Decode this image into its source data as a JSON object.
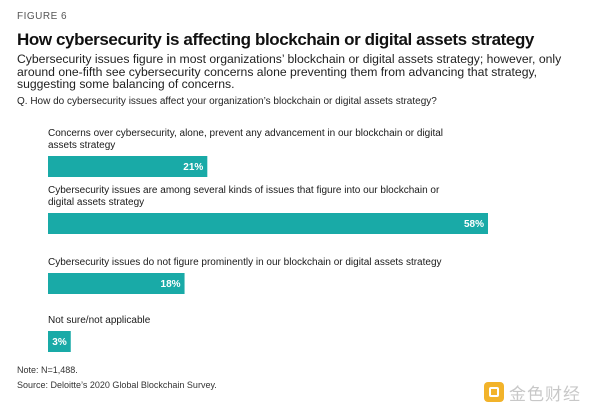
{
  "figure_label": "FIGURE 6",
  "title": "How cybersecurity is affecting blockchain or digital assets strategy",
  "subtitle": "Cybersecurity issues figure in most organizations’ blockchain or digital assets strategy; however, only around one-fifth see cybersecurity concerns alone preventing them from advancing that strategy, suggesting some balancing of concerns.",
  "question": "Q. How do cybersecurity issues affect your organization’s blockchain or digital assets strategy?",
  "note": "Note: N=1,488.",
  "source": "Source: Deloitte’s 2020 Global Blockchain Survey.",
  "watermark": {
    "text": "金色财经",
    "color": "#f2b32a"
  },
  "colors": {
    "bar": "#19aaa7",
    "bar_label": "#ffffff"
  },
  "chart_data": {
    "type": "bar",
    "orientation": "horizontal",
    "categories": [
      [
        "Concerns over cybersecurity, alone, prevent any advancement in our blockchain or digital",
        "assets strategy"
      ],
      [
        "Cybersecurity issues are among several kinds of issues that figure into our blockchain or",
        "digital assets strategy"
      ],
      [
        "Cybersecurity issues do not figure prominently in our blockchain or digital assets strategy"
      ],
      [
        "Not sure/not applicable"
      ]
    ],
    "values": [
      21,
      58,
      18,
      3
    ],
    "value_labels": [
      "21%",
      "58%",
      "18%",
      "3%"
    ],
    "unit": "%",
    "xlim": [
      0,
      58
    ],
    "grid": false,
    "legend": "none"
  }
}
